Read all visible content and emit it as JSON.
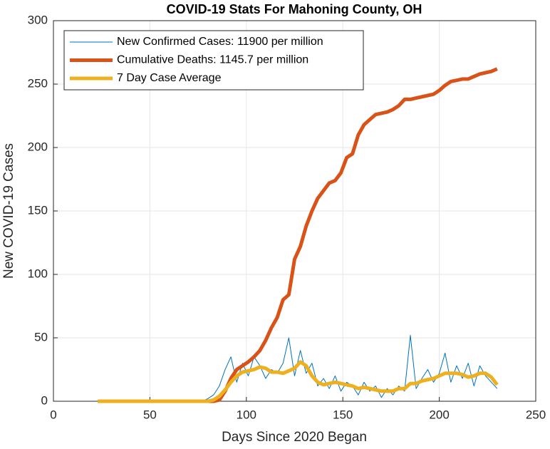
{
  "chart_data": {
    "type": "line",
    "title": "COVID-19 Stats For Mahoning County, OH",
    "xlabel": "Days Since 2020 Began",
    "ylabel": "New COVID-19 Cases",
    "x": [
      23,
      26,
      29,
      32,
      35,
      38,
      41,
      44,
      47,
      50,
      53,
      56,
      59,
      62,
      65,
      68,
      71,
      74,
      77,
      80,
      83,
      86,
      89,
      92,
      95,
      98,
      101,
      104,
      107,
      110,
      113,
      116,
      119,
      122,
      125,
      128,
      131,
      134,
      137,
      140,
      143,
      146,
      149,
      152,
      155,
      158,
      161,
      164,
      167,
      170,
      173,
      176,
      179,
      182,
      185,
      188,
      191,
      194,
      197,
      200,
      203,
      206,
      209,
      212,
      215,
      218,
      221,
      224,
      227,
      230
    ],
    "series": [
      {
        "name": "New Confirmed Cases: 11900 per million",
        "color": "#0072BD",
        "width": 1,
        "values": [
          0,
          0,
          0,
          0,
          0,
          0,
          0,
          0,
          0,
          0,
          0,
          0,
          0,
          0,
          0,
          0,
          0,
          0,
          0,
          2,
          5,
          12,
          25,
          35,
          15,
          30,
          20,
          35,
          28,
          18,
          25,
          22,
          30,
          50,
          20,
          40,
          22,
          30,
          12,
          18,
          10,
          20,
          8,
          15,
          12,
          5,
          15,
          8,
          12,
          3,
          10,
          5,
          12,
          8,
          52,
          10,
          18,
          25,
          15,
          22,
          38,
          15,
          28,
          18,
          30,
          12,
          28,
          20,
          15,
          10
        ]
      },
      {
        "name": "Cumulative Deaths: 1145.7 per million",
        "color": "#D95319",
        "width": 5,
        "values": [
          0,
          0,
          0,
          0,
          0,
          0,
          0,
          0,
          0,
          0,
          0,
          0,
          0,
          0,
          0,
          0,
          0,
          0,
          0,
          0,
          0,
          1,
          8,
          18,
          25,
          28,
          31,
          35,
          40,
          48,
          58,
          66,
          80,
          84,
          112,
          122,
          138,
          150,
          160,
          166,
          172,
          174,
          180,
          192,
          195,
          210,
          218,
          222,
          226,
          227,
          228,
          230,
          233,
          238,
          238,
          239,
          240,
          241,
          242,
          245,
          249,
          252,
          253,
          254,
          254,
          256,
          258,
          259,
          260,
          262
        ]
      },
      {
        "name": "7 Day Case Average",
        "color": "#EDB120",
        "width": 5,
        "values": [
          0,
          0,
          0,
          0,
          0,
          0,
          0,
          0,
          0,
          0,
          0,
          0,
          0,
          0,
          0,
          0,
          0,
          0,
          0,
          0,
          1,
          4,
          9,
          15,
          20,
          23,
          24,
          25,
          27,
          26,
          23,
          23,
          22,
          24,
          26,
          31,
          28,
          20,
          15,
          13,
          14,
          15,
          14,
          13,
          12,
          10,
          11,
          10,
          9,
          8,
          8,
          8,
          10,
          10,
          14,
          14,
          16,
          17,
          18,
          20,
          22,
          22,
          22,
          21,
          19,
          20,
          22,
          22,
          19,
          13
        ]
      }
    ],
    "xlim": [
      0,
      250
    ],
    "xticks": [
      0,
      50,
      100,
      150,
      200,
      250
    ],
    "ylim": [
      0,
      300
    ],
    "yticks": [
      0,
      50,
      100,
      150,
      200,
      250,
      300
    ],
    "grid": true,
    "legend": "top-left"
  }
}
